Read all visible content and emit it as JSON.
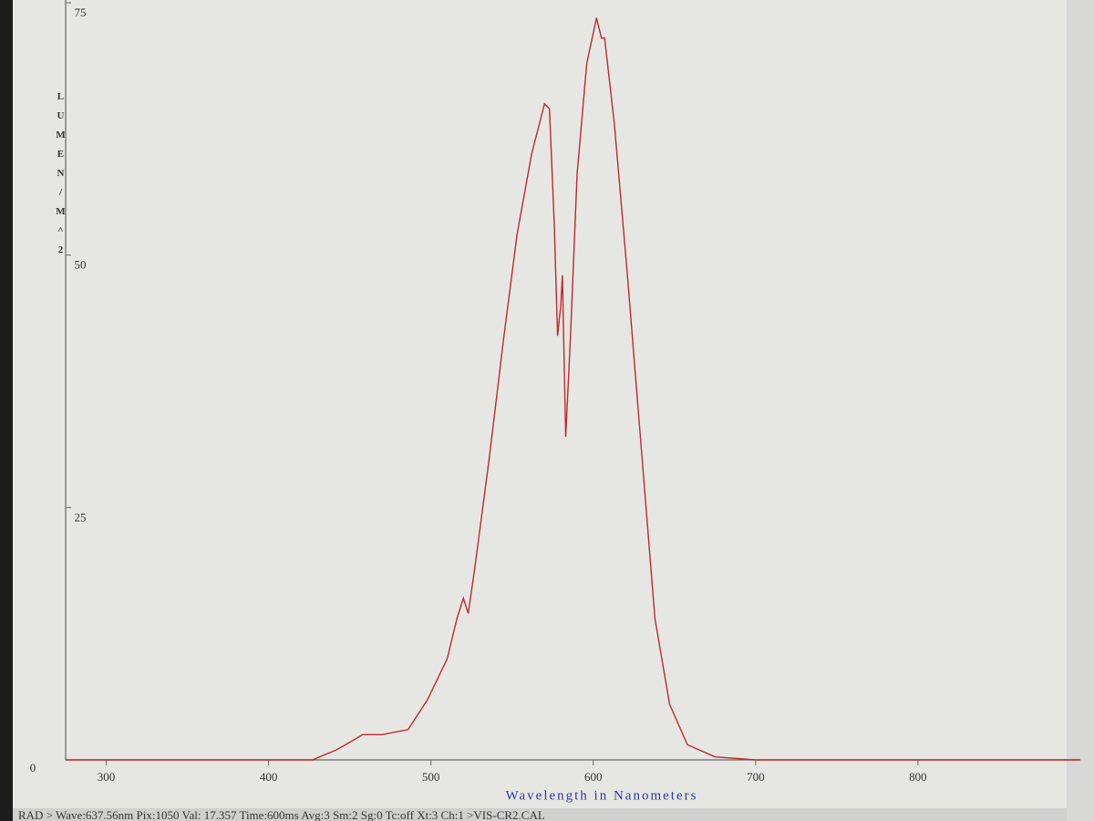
{
  "chart_data": {
    "type": "line",
    "xlabel": "Wavelength in Nanometers",
    "ylabel": "LUMEN/M^2",
    "status": "RAD > Wave:637.56nm Pix:1050 Val: 17.357 Time:600ms Avg:3 Sm:2 Sg:0 Tc:off Xt:3 Ch:1 >VIS-CR2.CAL",
    "xlim": [
      275,
      900
    ],
    "ylim": [
      0,
      75
    ],
    "xticks": [
      300,
      400,
      500,
      600,
      700,
      800
    ],
    "yticks": [
      0,
      25,
      50,
      75
    ],
    "grid": false,
    "series": [
      {
        "color": "#c0282d",
        "x": [
          275,
          427,
          442,
          458,
          470,
          486,
          498,
          510,
          516,
          520,
          523,
          527,
          536,
          545,
          553,
          562,
          570,
          573,
          576,
          578,
          580,
          581,
          583,
          586,
          590,
          596,
          602,
          605,
          607,
          613,
          621,
          630,
          638,
          647,
          658,
          675,
          700,
          900
        ],
        "values": [
          0,
          0,
          1,
          2.5,
          2.5,
          3,
          6,
          10,
          14,
          16,
          14.5,
          19,
          30,
          42,
          52,
          60,
          65,
          64.5,
          53,
          42,
          45,
          48,
          32,
          42,
          58,
          69,
          73.5,
          71.5,
          71.5,
          63,
          48,
          30,
          14,
          5.5,
          1.5,
          0.3,
          0,
          0
        ]
      }
    ]
  }
}
